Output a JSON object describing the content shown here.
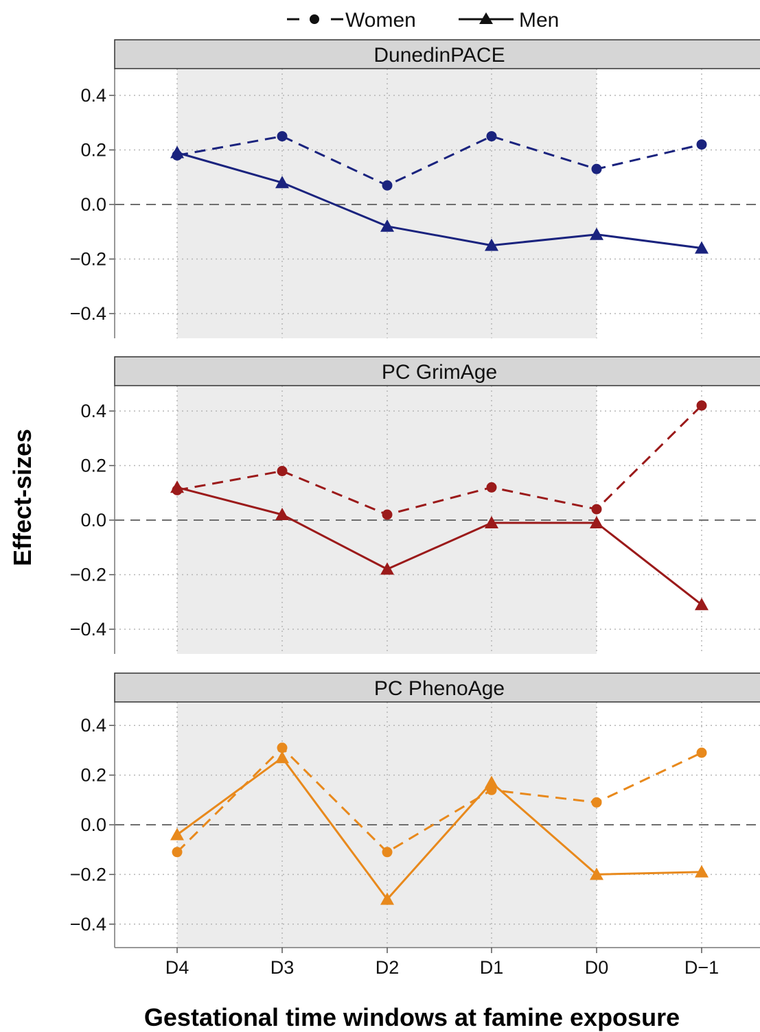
{
  "chart_data": {
    "type": "line",
    "xlabel": "Gestational time windows at famine exposure",
    "ylabel": "Effect-sizes",
    "categories": [
      "D4",
      "D3",
      "D2",
      "D1",
      "D0",
      "D−1"
    ],
    "shaded_categories": [
      "D4",
      "D3",
      "D2",
      "D1",
      "D0"
    ],
    "ylim": [
      -0.5,
      0.5
    ],
    "yticks": [
      0.4,
      0.2,
      0.0,
      -0.2,
      -0.4
    ],
    "ytick_labels": [
      "0.4",
      "0.2",
      "0.0",
      "−0.2",
      "−0.4"
    ],
    "reference_line": 0,
    "grid": "dotted",
    "legend": {
      "position": "top",
      "entries": [
        {
          "name": "Women",
          "line": "dashed",
          "marker": "circle"
        },
        {
          "name": "Men",
          "line": "solid",
          "marker": "triangle"
        }
      ]
    },
    "panels": [
      {
        "title": "DunedinPACE",
        "color": "#1a237e",
        "series": [
          {
            "name": "Women",
            "values": [
              0.18,
              0.25,
              0.07,
              0.25,
              0.13,
              0.22
            ]
          },
          {
            "name": "Men",
            "values": [
              0.19,
              0.08,
              -0.08,
              -0.15,
              -0.11,
              -0.16
            ]
          }
        ]
      },
      {
        "title": "PC GrimAge",
        "color": "#9b1a1a",
        "series": [
          {
            "name": "Women",
            "values": [
              0.11,
              0.18,
              0.02,
              0.12,
              0.04,
              0.42
            ]
          },
          {
            "name": "Men",
            "values": [
              0.12,
              0.02,
              -0.18,
              -0.01,
              -0.01,
              -0.31
            ]
          }
        ]
      },
      {
        "title": "PC PhenoAge",
        "color": "#e8891c",
        "series": [
          {
            "name": "Women",
            "values": [
              -0.11,
              0.31,
              -0.11,
              0.14,
              0.09,
              0.29
            ]
          },
          {
            "name": "Men",
            "values": [
              -0.04,
              0.27,
              -0.3,
              0.17,
              -0.2,
              -0.19
            ]
          }
        ]
      }
    ]
  }
}
